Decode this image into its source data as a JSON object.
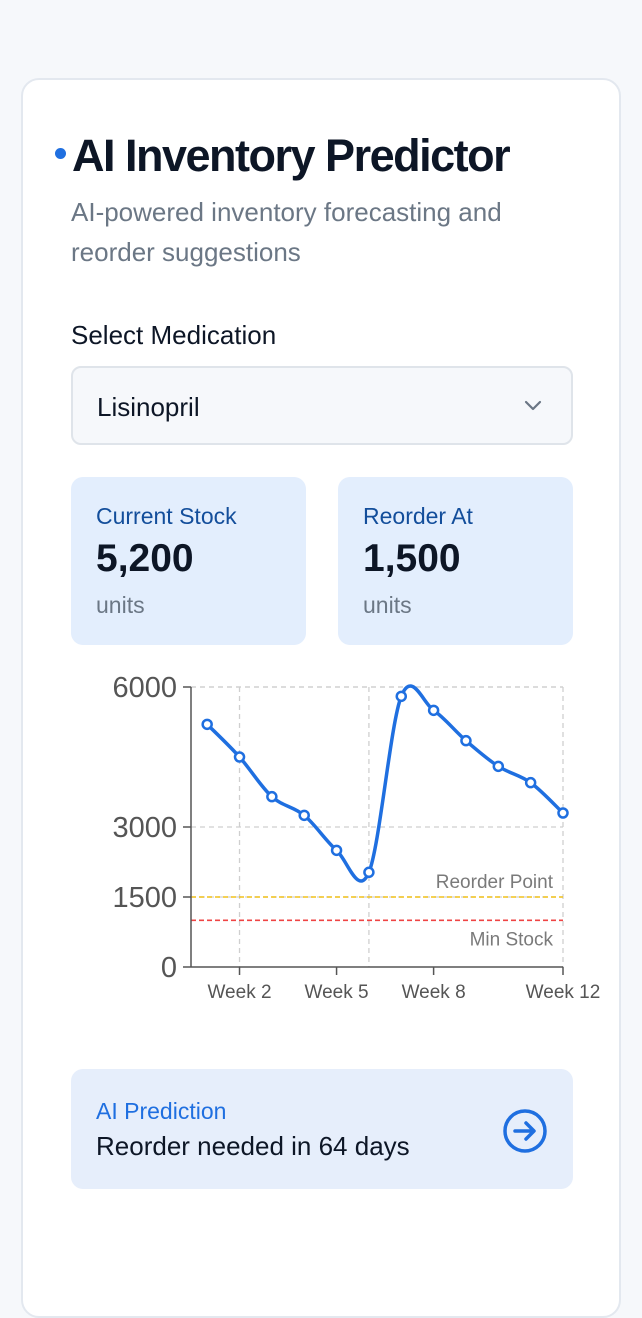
{
  "header": {
    "title": "AI Inventory Predictor",
    "subtitle": "AI-powered inventory forecasting and reorder suggestions"
  },
  "medication": {
    "label": "Select Medication",
    "selected": "Lisinopril"
  },
  "stats": {
    "current_stock": {
      "label": "Current Stock",
      "value": "5,200",
      "unit": "units"
    },
    "reorder_at": {
      "label": "Reorder At",
      "value": "1,500",
      "unit": "units"
    }
  },
  "prediction": {
    "label": "AI Prediction",
    "text": "Reorder needed in 64 days"
  },
  "colors": {
    "accent": "#1f6fe0",
    "reorder_line": "#f2c21b",
    "min_line": "#ef4444"
  },
  "chart_data": {
    "type": "line",
    "x": [
      1,
      2,
      3,
      4,
      5,
      6,
      7,
      8,
      9,
      10,
      11,
      12
    ],
    "values": [
      5200,
      4500,
      3650,
      3250,
      2500,
      2030,
      5800,
      5500,
      4850,
      4300,
      3950,
      3300
    ],
    "xticks": [
      2,
      5,
      8,
      12
    ],
    "xtick_labels": [
      "Week 2",
      "Week 5",
      "Week 8",
      "Week 12"
    ],
    "yticks": [
      0,
      1500,
      3000,
      6000
    ],
    "ytick_labels": [
      "0",
      "1500",
      "3000",
      "6000"
    ],
    "xlim": [
      0.5,
      12
    ],
    "ylim": [
      0,
      6000
    ],
    "reference_lines": [
      {
        "label": "Reorder Point",
        "value": 1500,
        "color": "#f2c21b"
      },
      {
        "label": "Min Stock",
        "value": 1000,
        "color": "#ef4444"
      }
    ],
    "grid": true,
    "title": "",
    "xlabel": "",
    "ylabel": ""
  }
}
